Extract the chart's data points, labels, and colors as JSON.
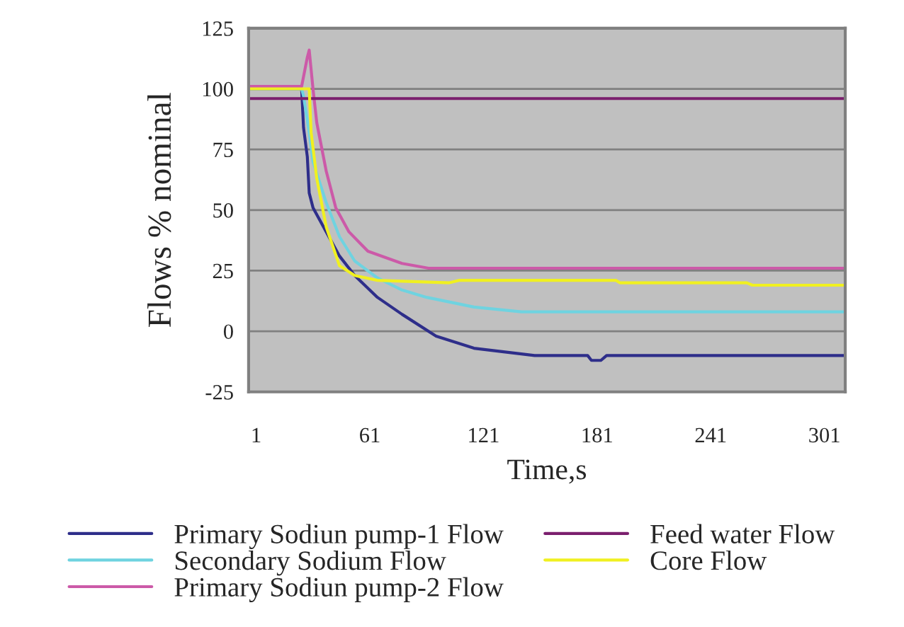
{
  "chart_data": {
    "type": "line",
    "xlabel": "Time,s",
    "ylabel": "Flows % nominal",
    "xlim": [
      -3,
      312
    ],
    "xticks": [
      1,
      61,
      121,
      181,
      241,
      301
    ],
    "ylim": [
      -25,
      125
    ],
    "yticks": [
      -25,
      0,
      25,
      50,
      75,
      100,
      125
    ],
    "grid": "y",
    "legend": "bottom",
    "line_style": "solid",
    "marker": "none",
    "series": [
      {
        "name": "Primary Sodiun pump-1 Flow",
        "color": "#2e2e8a",
        "x": [
          -3,
          25,
          26,
          28,
          29,
          31,
          38,
          45,
          53,
          65,
          78,
          96,
          116,
          148,
          176,
          178,
          183,
          186,
          312
        ],
        "values": [
          100,
          100,
          84,
          72,
          57,
          51,
          41,
          31,
          23,
          14,
          7,
          -2,
          -7,
          -10,
          -10,
          -12,
          -12,
          -10,
          -10
        ]
      },
      {
        "name": "Secondary Sodium Flow",
        "color": "#6fd3e0",
        "x": [
          -3,
          25,
          26,
          29,
          31,
          38,
          45,
          53,
          65,
          78,
          91,
          116,
          141,
          312
        ],
        "values": [
          100,
          100,
          97,
          82,
          70,
          53,
          39,
          29,
          22,
          17,
          14,
          10,
          8,
          8
        ]
      },
      {
        "name": "Primary Sodiun pump-2 Flow",
        "color": "#cc5aa8",
        "x": [
          -3,
          25,
          28,
          29,
          31,
          33,
          38,
          43,
          50,
          60,
          78,
          92,
          312
        ],
        "values": [
          101,
          101,
          113,
          116,
          100,
          86,
          66,
          51,
          41,
          33,
          28,
          26,
          26
        ]
      },
      {
        "name": "Feed water Flow",
        "color": "#7b1f6e",
        "x": [
          -3,
          312
        ],
        "values": [
          96,
          96
        ]
      },
      {
        "name": "Core Flow",
        "color": "#f0f020",
        "x": [
          -3,
          28,
          29,
          30,
          33,
          38,
          45,
          53,
          65,
          103,
          108,
          191,
          193,
          260,
          263,
          312
        ],
        "values": [
          100,
          100,
          100,
          82,
          63,
          43,
          27,
          23,
          21,
          20,
          21,
          21,
          20,
          20,
          19,
          19
        ]
      }
    ]
  }
}
